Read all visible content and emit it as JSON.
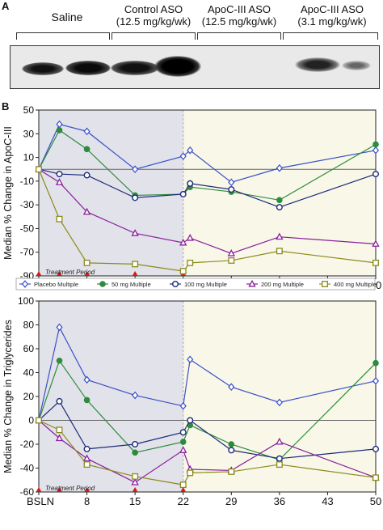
{
  "panelA": {
    "letter": "A",
    "lanes": [
      {
        "line1": "Saline",
        "line2": ""
      },
      {
        "line1": "Control ASO",
        "line2": "(12.5 mg/kg/wk)"
      },
      {
        "line1": "ApoC-III ASO",
        "line2": "(12.5 mg/kg/wk)"
      },
      {
        "line1": "ApoC-III ASO",
        "line2": "(3.1 mg/kg/wk)"
      }
    ]
  },
  "panelB": {
    "letter": "B",
    "treatment_label": "Treatment Period",
    "legend": [
      "Placebo Multiple",
      "50 mg Multiple",
      "100 mg Multiple",
      "200 mg Multiple",
      "400 mg Multiple"
    ],
    "colors": [
      "#3a50c8",
      "#2e8b3e",
      "#1c2a7a",
      "#8a1f9a",
      "#8a8a1a"
    ]
  },
  "chart_data": [
    {
      "type": "line",
      "ylabel": "Median % Change in ApoC-III",
      "xtick_labels": [
        "BSLN",
        "8",
        "15",
        "22",
        "29",
        "36",
        "43",
        "50"
      ],
      "xticks": [
        1,
        8,
        15,
        22,
        29,
        36,
        43,
        50
      ],
      "ylim": [
        -90,
        50
      ],
      "yticks": [
        50,
        30,
        10,
        -10,
        -30,
        -50,
        -70,
        -90
      ],
      "treatment_end": 22,
      "dosing_days": [
        1,
        4,
        8,
        15,
        22
      ],
      "series": [
        {
          "name": "Placebo Multiple",
          "x": [
            1,
            4,
            8,
            15,
            22,
            23,
            29,
            36,
            50
          ],
          "y": [
            0,
            38,
            32,
            0,
            11,
            16,
            -11,
            1,
            16
          ]
        },
        {
          "name": "50 mg Multiple",
          "x": [
            1,
            4,
            8,
            15,
            22,
            23,
            29,
            36,
            50
          ],
          "y": [
            0,
            33,
            17,
            -22,
            -21,
            -15,
            -19,
            -26,
            21
          ]
        },
        {
          "name": "100 mg Multiple",
          "x": [
            1,
            4,
            8,
            15,
            22,
            23,
            29,
            36,
            50
          ],
          "y": [
            0,
            -4,
            -5,
            -24,
            -21,
            -12,
            -17,
            -32,
            -4
          ]
        },
        {
          "name": "200 mg Multiple",
          "x": [
            1,
            4,
            8,
            15,
            22,
            23,
            29,
            36,
            50
          ],
          "y": [
            0,
            -11,
            -36,
            -54,
            -62,
            -58,
            -71,
            -57,
            -63
          ]
        },
        {
          "name": "400 mg Multiple",
          "x": [
            1,
            4,
            8,
            15,
            22,
            23,
            29,
            36,
            50
          ],
          "y": [
            0,
            -42,
            -79,
            -80,
            -86,
            -79,
            -77,
            -69,
            -79
          ]
        }
      ]
    },
    {
      "type": "line",
      "ylabel": "Median % Change in Triglycerides",
      "xtick_labels": [
        "BSLN",
        "8",
        "15",
        "22",
        "29",
        "36",
        "43",
        "50"
      ],
      "xticks": [
        1,
        8,
        15,
        22,
        29,
        36,
        43,
        50
      ],
      "ylim": [
        -60,
        100
      ],
      "yticks": [
        100,
        80,
        60,
        40,
        20,
        0,
        -20,
        -40,
        -60
      ],
      "treatment_end": 22,
      "dosing_days": [
        1,
        4,
        8,
        15,
        22
      ],
      "series": [
        {
          "name": "Placebo Multiple",
          "x": [
            1,
            4,
            8,
            15,
            22,
            23,
            29,
            36,
            50
          ],
          "y": [
            0,
            78,
            34,
            21,
            12,
            51,
            28,
            15,
            33
          ]
        },
        {
          "name": "50 mg Multiple",
          "x": [
            1,
            4,
            8,
            15,
            22,
            23,
            29,
            36,
            50
          ],
          "y": [
            0,
            50,
            17,
            -27,
            -18,
            -4,
            -20,
            -33,
            48
          ]
        },
        {
          "name": "100 mg Multiple",
          "x": [
            1,
            4,
            8,
            15,
            22,
            23,
            29,
            36,
            50
          ],
          "y": [
            0,
            16,
            -24,
            -20,
            -10,
            0,
            -25,
            -32,
            -24
          ]
        },
        {
          "name": "200 mg Multiple",
          "x": [
            1,
            4,
            8,
            15,
            22,
            23,
            29,
            36,
            50
          ],
          "y": [
            0,
            -15,
            -32,
            -52,
            -25,
            -41,
            -42,
            -18,
            -48
          ]
        },
        {
          "name": "400 mg Multiple",
          "x": [
            1,
            4,
            8,
            15,
            22,
            23,
            29,
            36,
            50
          ],
          "y": [
            0,
            -8,
            -37,
            -47,
            -54,
            -44,
            -43,
            -37,
            -48
          ]
        }
      ]
    }
  ]
}
